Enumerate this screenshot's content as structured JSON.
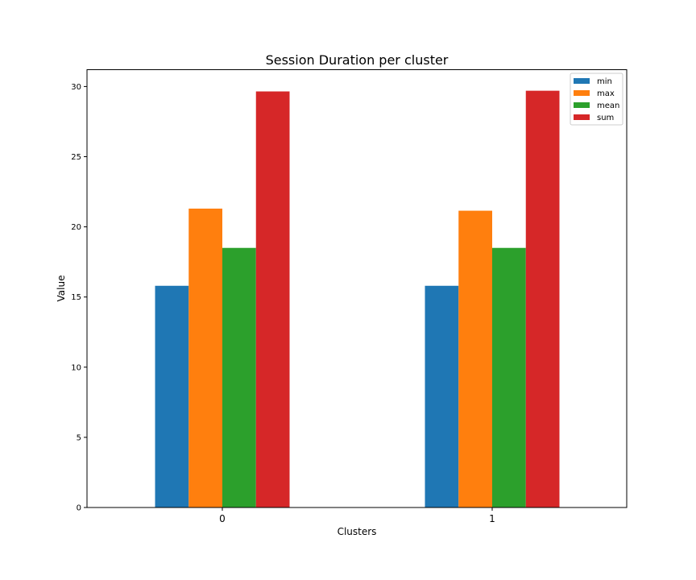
{
  "chart_data": {
    "type": "bar",
    "title": "Session Duration per cluster",
    "xlabel": "Clusters",
    "ylabel": "Value",
    "categories": [
      "0",
      "1"
    ],
    "ylim": [
      0,
      31.2
    ],
    "yticks": [
      "0",
      "5",
      "10",
      "15",
      "20",
      "25",
      "30"
    ],
    "legend_position": "top-right",
    "grid": false,
    "series": [
      {
        "name": "min",
        "color": "#1f77b4",
        "values": [
          15.8,
          15.8
        ]
      },
      {
        "name": "max",
        "color": "#ff7f0e",
        "values": [
          21.3,
          21.15
        ]
      },
      {
        "name": "mean",
        "color": "#2ca02c",
        "values": [
          18.5,
          18.5
        ]
      },
      {
        "name": "sum",
        "color": "#d62728",
        "values": [
          29.65,
          29.7
        ]
      }
    ]
  }
}
